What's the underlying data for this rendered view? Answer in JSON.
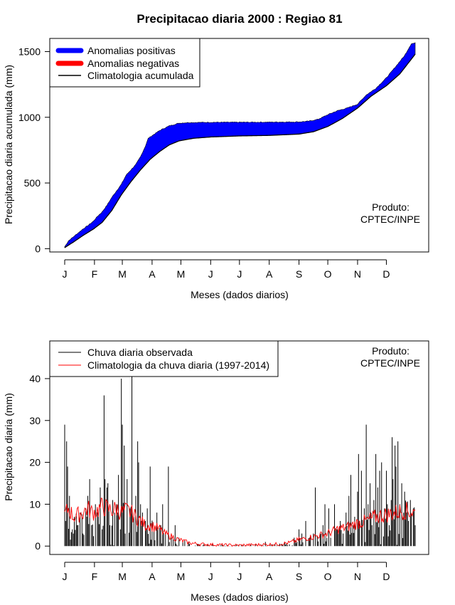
{
  "colors": {
    "positive": "#0000ff",
    "negative": "#ff0000",
    "climatology_line": "#000000",
    "observed_bar": "#000000",
    "climatology_daily": "#ff0000"
  },
  "chart_data": [
    {
      "type": "area",
      "title": "Precipitacao diaria 2000 : Regiao 81",
      "xlabel": "Meses (dados diarios)",
      "ylabel": "Precipitacao diaria acumulada (mm)",
      "ylim": [
        -25,
        1600
      ],
      "yticks": [
        0,
        500,
        1000,
        1500
      ],
      "month_labels": [
        "J",
        "F",
        "M",
        "A",
        "M",
        "J",
        "J",
        "A",
        "S",
        "O",
        "N",
        "D"
      ],
      "month_start_days": [
        1,
        32,
        61,
        92,
        122,
        153,
        183,
        214,
        245,
        275,
        306,
        336
      ],
      "n_days": 366,
      "legend": [
        "Anomalias positivas",
        "Anomalias negativas",
        "Climatologia acumulada"
      ],
      "annotation": [
        "Produto:",
        "CPTEC/INPE"
      ],
      "climatology_cumulative_knots": [
        [
          1,
          8
        ],
        [
          10,
          50
        ],
        [
          20,
          100
        ],
        [
          31,
          150
        ],
        [
          40,
          200
        ],
        [
          50,
          290
        ],
        [
          60,
          410
        ],
        [
          70,
          510
        ],
        [
          80,
          600
        ],
        [
          90,
          680
        ],
        [
          100,
          740
        ],
        [
          110,
          790
        ],
        [
          120,
          820
        ],
        [
          135,
          840
        ],
        [
          153,
          850
        ],
        [
          183,
          858
        ],
        [
          214,
          862
        ],
        [
          245,
          872
        ],
        [
          260,
          890
        ],
        [
          275,
          930
        ],
        [
          290,
          990
        ],
        [
          306,
          1070
        ],
        [
          320,
          1160
        ],
        [
          336,
          1240
        ],
        [
          350,
          1330
        ],
        [
          366,
          1480
        ]
      ],
      "observed_cumulative_knots": [
        [
          1,
          15
        ],
        [
          5,
          60
        ],
        [
          10,
          90
        ],
        [
          20,
          150
        ],
        [
          25,
          175
        ],
        [
          31,
          210
        ],
        [
          35,
          245
        ],
        [
          40,
          280
        ],
        [
          45,
          330
        ],
        [
          50,
          390
        ],
        [
          55,
          440
        ],
        [
          60,
          490
        ],
        [
          65,
          560
        ],
        [
          70,
          600
        ],
        [
          75,
          640
        ],
        [
          80,
          700
        ],
        [
          85,
          780
        ],
        [
          88,
          840
        ],
        [
          92,
          860
        ],
        [
          100,
          900
        ],
        [
          110,
          935
        ],
        [
          120,
          955
        ],
        [
          130,
          960
        ],
        [
          153,
          962
        ],
        [
          183,
          962
        ],
        [
          214,
          963
        ],
        [
          245,
          965
        ],
        [
          255,
          970
        ],
        [
          265,
          985
        ],
        [
          275,
          1020
        ],
        [
          285,
          1050
        ],
        [
          295,
          1070
        ],
        [
          306,
          1100
        ],
        [
          315,
          1170
        ],
        [
          325,
          1220
        ],
        [
          336,
          1300
        ],
        [
          345,
          1380
        ],
        [
          355,
          1470
        ],
        [
          362,
          1560
        ],
        [
          366,
          1565
        ]
      ]
    },
    {
      "type": "bar",
      "xlabel": "Meses (dados diarios)",
      "ylabel": "Precipitacao diaria (mm)",
      "ylim": [
        -2,
        49
      ],
      "yticks": [
        0,
        10,
        20,
        30,
        40
      ],
      "month_labels": [
        "J",
        "F",
        "M",
        "A",
        "M",
        "J",
        "J",
        "A",
        "S",
        "O",
        "N",
        "D"
      ],
      "month_start_days": [
        1,
        32,
        61,
        92,
        122,
        153,
        183,
        214,
        245,
        275,
        306,
        336
      ],
      "n_days": 366,
      "legend": [
        "Chuva diaria observada",
        "Climatologia da chuva diaria (1997-2014)"
      ],
      "annotation": [
        "Produto:",
        "CPTEC/INPE"
      ],
      "observed_daily_peaks": [
        [
          1,
          29
        ],
        [
          2,
          6
        ],
        [
          3,
          25
        ],
        [
          4,
          19
        ],
        [
          6,
          12
        ],
        [
          9,
          4
        ],
        [
          11,
          7
        ],
        [
          14,
          5
        ],
        [
          17,
          8
        ],
        [
          20,
          3
        ],
        [
          23,
          9
        ],
        [
          25,
          12
        ],
        [
          27,
          16
        ],
        [
          29,
          5
        ],
        [
          33,
          10
        ],
        [
          36,
          7
        ],
        [
          38,
          14
        ],
        [
          40,
          4
        ],
        [
          42,
          36
        ],
        [
          43,
          16
        ],
        [
          45,
          14
        ],
        [
          46,
          15
        ],
        [
          48,
          5
        ],
        [
          51,
          11
        ],
        [
          53,
          8
        ],
        [
          55,
          10
        ],
        [
          57,
          17
        ],
        [
          59,
          4
        ],
        [
          60,
          40
        ],
        [
          61,
          29
        ],
        [
          63,
          24
        ],
        [
          64,
          3
        ],
        [
          66,
          16
        ],
        [
          69,
          9
        ],
        [
          71,
          44
        ],
        [
          73,
          7
        ],
        [
          75,
          12
        ],
        [
          77,
          25
        ],
        [
          78,
          20
        ],
        [
          80,
          10
        ],
        [
          82,
          8
        ],
        [
          85,
          6
        ],
        [
          87,
          9
        ],
        [
          90,
          19
        ],
        [
          94,
          4
        ],
        [
          97,
          8
        ],
        [
          101,
          5
        ],
        [
          103,
          10
        ],
        [
          106,
          3
        ],
        [
          109,
          19
        ],
        [
          112,
          2
        ],
        [
          116,
          5
        ],
        [
          120,
          2
        ],
        [
          124,
          1
        ],
        [
          130,
          1
        ],
        [
          140,
          0.5
        ],
        [
          150,
          0.5
        ],
        [
          165,
          0.3
        ],
        [
          180,
          0.3
        ],
        [
          200,
          0.5
        ],
        [
          210,
          1
        ],
        [
          220,
          0.5
        ],
        [
          230,
          1
        ],
        [
          240,
          2
        ],
        [
          245,
          4
        ],
        [
          248,
          3
        ],
        [
          252,
          6
        ],
        [
          256,
          2
        ],
        [
          260,
          3
        ],
        [
          262,
          14
        ],
        [
          268,
          3
        ],
        [
          270,
          5
        ],
        [
          272,
          10
        ],
        [
          274,
          2
        ],
        [
          276,
          9
        ],
        [
          278,
          2
        ],
        [
          282,
          10
        ],
        [
          285,
          4
        ],
        [
          288,
          6
        ],
        [
          291,
          3
        ],
        [
          294,
          8
        ],
        [
          297,
          12
        ],
        [
          299,
          17
        ],
        [
          301,
          5
        ],
        [
          303,
          7
        ],
        [
          306,
          13
        ],
        [
          307,
          22
        ],
        [
          308,
          6
        ],
        [
          310,
          18
        ],
        [
          313,
          9
        ],
        [
          315,
          29
        ],
        [
          317,
          10
        ],
        [
          319,
          15
        ],
        [
          321,
          5
        ],
        [
          323,
          11
        ],
        [
          325,
          22
        ],
        [
          327,
          14
        ],
        [
          329,
          18
        ],
        [
          331,
          20
        ],
        [
          334,
          9
        ],
        [
          336,
          18
        ],
        [
          337,
          10
        ],
        [
          339,
          5
        ],
        [
          341,
          11
        ],
        [
          342,
          26
        ],
        [
          343,
          16
        ],
        [
          345,
          24
        ],
        [
          346,
          19
        ],
        [
          348,
          25
        ],
        [
          350,
          10
        ],
        [
          352,
          15
        ],
        [
          355,
          13
        ],
        [
          357,
          8
        ],
        [
          359,
          6
        ],
        [
          361,
          11
        ],
        [
          364,
          9
        ],
        [
          366,
          5
        ]
      ],
      "climatology_daily_knots": [
        [
          1,
          7.5
        ],
        [
          5,
          9
        ],
        [
          10,
          7
        ],
        [
          15,
          7.5
        ],
        [
          20,
          8
        ],
        [
          25,
          9
        ],
        [
          30,
          8
        ],
        [
          35,
          8.5
        ],
        [
          40,
          9.5
        ],
        [
          45,
          9
        ],
        [
          50,
          8.5
        ],
        [
          55,
          9
        ],
        [
          60,
          8
        ],
        [
          65,
          8.5
        ],
        [
          70,
          8
        ],
        [
          75,
          7
        ],
        [
          80,
          6
        ],
        [
          85,
          5
        ],
        [
          90,
          5
        ],
        [
          95,
          4.5
        ],
        [
          100,
          4
        ],
        [
          105,
          3
        ],
        [
          110,
          2.5
        ],
        [
          115,
          2
        ],
        [
          120,
          1.5
        ],
        [
          125,
          1.2
        ],
        [
          130,
          0.8
        ],
        [
          140,
          0.5
        ],
        [
          150,
          0.4
        ],
        [
          160,
          0.3
        ],
        [
          180,
          0.2
        ],
        [
          200,
          0.3
        ],
        [
          214,
          0.4
        ],
        [
          225,
          0.5
        ],
        [
          235,
          0.8
        ],
        [
          245,
          1.5
        ],
        [
          255,
          2
        ],
        [
          265,
          2.5
        ],
        [
          275,
          3
        ],
        [
          285,
          4
        ],
        [
          295,
          4.5
        ],
        [
          306,
          5.5
        ],
        [
          315,
          6
        ],
        [
          325,
          7
        ],
        [
          336,
          7.5
        ],
        [
          345,
          8
        ],
        [
          355,
          8.5
        ],
        [
          366,
          8
        ]
      ]
    }
  ]
}
